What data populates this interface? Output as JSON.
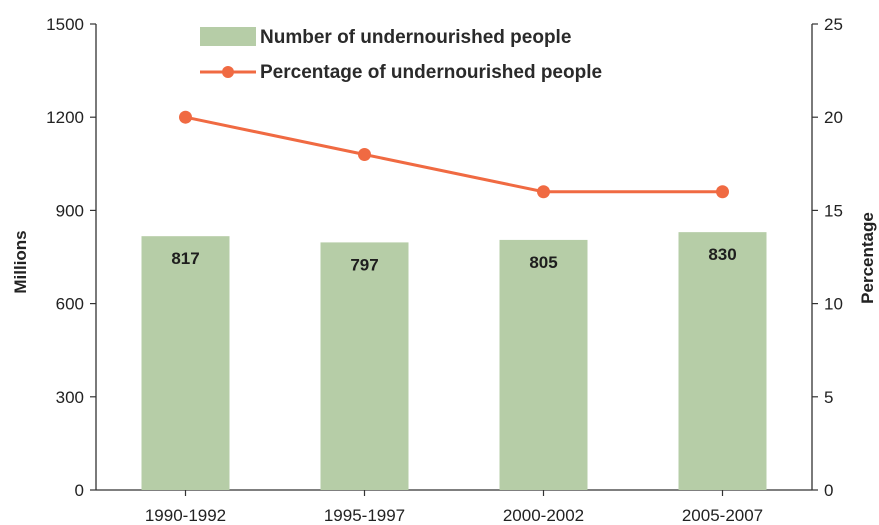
{
  "chart_data": {
    "type": "bar",
    "categories": [
      "1990-1992",
      "1995-1997",
      "2000-2002",
      "2005-2007"
    ],
    "series": [
      {
        "name": "Number of undernourished people",
        "type": "bar",
        "axis": "left",
        "color": "#b6cda7",
        "values": [
          817,
          797,
          805,
          830
        ],
        "data_labels": [
          "817",
          "797",
          "805",
          "830"
        ]
      },
      {
        "name": "Percentage of undernourished people",
        "type": "line",
        "axis": "right",
        "color": "#f06a42",
        "values": [
          20,
          18,
          16,
          16
        ]
      }
    ],
    "ylabel": "Millions",
    "y2label": "Percentage",
    "ylim": [
      0,
      1500
    ],
    "y2lim": [
      0,
      25
    ],
    "yticks": [
      "0",
      "300",
      "600",
      "900",
      "1200",
      "1500"
    ],
    "y2ticks": [
      "0",
      "5",
      "10",
      "15",
      "20",
      "25"
    ],
    "grid": false,
    "legend_position": "top-center"
  }
}
